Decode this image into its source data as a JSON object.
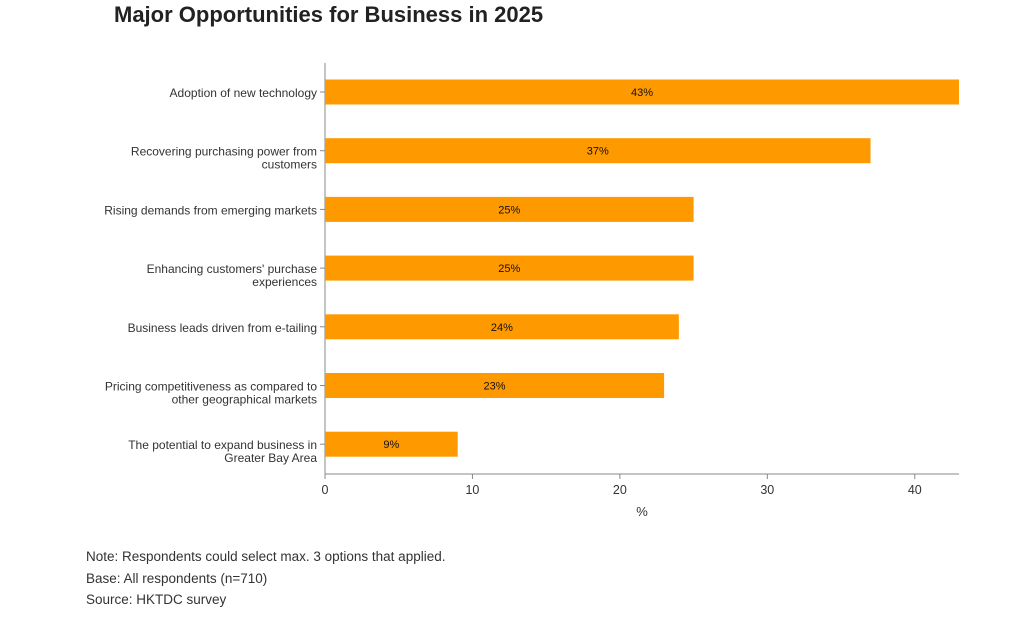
{
  "chart_data": {
    "type": "bar",
    "orientation": "horizontal",
    "title": "Major Opportunities for Business in 2025",
    "categories": [
      [
        "Adoption of new technology"
      ],
      [
        "Recovering purchasing power from",
        "customers"
      ],
      [
        "Rising demands from emerging markets"
      ],
      [
        "Enhancing customers' purchase",
        "experiences"
      ],
      [
        "Business leads driven from e-tailing"
      ],
      [
        "Pricing competitiveness as compared to",
        "other geographical markets"
      ],
      [
        "The potential to expand business in",
        "Greater Bay Area"
      ]
    ],
    "values": [
      43,
      37,
      25,
      25,
      24,
      23,
      9
    ],
    "data_labels": [
      "43%",
      "37%",
      "25%",
      "25%",
      "24%",
      "23%",
      "9%"
    ],
    "xlabel": "%",
    "xlim": [
      0,
      43
    ],
    "xticks": [
      0,
      10,
      20,
      30,
      40
    ],
    "grid": false,
    "bar_color": "#ff9900"
  },
  "notes": [
    "Note: Respondents could select max. 3 options that applied.",
    "Base: All respondents (n=710)",
    "Source: HKTDC survey"
  ]
}
